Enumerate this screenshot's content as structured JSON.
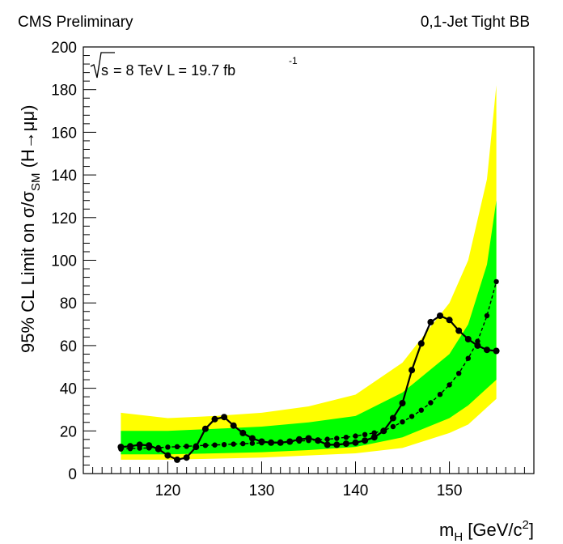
{
  "header": {
    "left": "CMS Preliminary",
    "right": "0,1-Jet Tight BB"
  },
  "annotation": {
    "sqrt": "s",
    "energy": " = 8 TeV L = 19.7 fb",
    "exponent": "-1"
  },
  "axes": {
    "ylabel_main": "95% CL Limit on σ/σ",
    "ylabel_sub": "SM",
    "ylabel_tail": " (H→μμ)",
    "xlabel_main": "m",
    "xlabel_sub": "H",
    "xlabel_unit": " [GeV/c",
    "xlabel_sup": "2",
    "xlabel_close": "]"
  },
  "colors": {
    "band_2sigma": "#ffff00",
    "band_1sigma": "#00ff00",
    "line": "#000000"
  },
  "chart_data": {
    "type": "line",
    "xlim": [
      111,
      159
    ],
    "ylim": [
      0,
      200
    ],
    "x_ticks": [
      "120",
      "130",
      "140",
      "150"
    ],
    "y_ticks": [
      "0",
      "20",
      "40",
      "60",
      "80",
      "100",
      "120",
      "140",
      "160",
      "180",
      "200"
    ],
    "grid": false,
    "x": [
      115,
      116,
      117,
      118,
      119,
      120,
      121,
      122,
      123,
      124,
      125,
      126,
      127,
      128,
      129,
      130,
      131,
      132,
      133,
      134,
      135,
      136,
      137,
      138,
      139,
      140,
      141,
      142,
      143,
      144,
      145,
      146,
      147,
      148,
      149,
      150,
      151,
      152,
      153,
      154,
      155
    ],
    "series": [
      {
        "style": "solid",
        "values": [
          12.5,
          12.8,
          13.5,
          13.2,
          11.5,
          8.5,
          6.5,
          7.5,
          12.5,
          21,
          25.5,
          26.5,
          22.5,
          19,
          16.5,
          15,
          14.5,
          14.5,
          15,
          16,
          16.5,
          15.5,
          13.5,
          13.5,
          14,
          14.5,
          15.5,
          17,
          20,
          26,
          33,
          48.5,
          61,
          71,
          74,
          72,
          67,
          63,
          60,
          58,
          57.5
        ]
      },
      {
        "style": "dashed",
        "values": [
          11.5,
          11.7,
          11.9,
          12,
          12.2,
          12.4,
          12.6,
          12.8,
          13,
          13.2,
          13.4,
          13.6,
          13.8,
          14,
          14.2,
          14.4,
          14.6,
          14.8,
          15,
          15.2,
          15.5,
          15.8,
          16.1,
          16.5,
          17,
          17.6,
          18.3,
          19.1,
          20.1,
          22,
          24.2,
          26.8,
          29.7,
          33.2,
          37.1,
          41.6,
          47,
          54,
          62,
          74,
          90
        ]
      }
    ],
    "band_x": [
      115,
      120,
      125,
      130,
      135,
      140,
      145,
      150,
      152,
      154,
      155
    ],
    "band_1sigma_low": [
      9,
      9,
      9.5,
      10,
      11,
      12.5,
      17,
      26,
      32,
      40,
      44
    ],
    "band_1sigma_high": [
      20,
      20,
      21,
      22,
      24,
      27,
      38,
      56,
      70,
      98,
      128
    ],
    "band_2sigma_low": [
      6.5,
      6.5,
      7,
      7.5,
      8.5,
      9.5,
      12,
      19,
      23,
      31,
      35
    ],
    "band_2sigma_high": [
      28.5,
      26,
      27,
      28.5,
      31.5,
      37,
      52,
      80,
      100,
      138,
      182
    ]
  }
}
